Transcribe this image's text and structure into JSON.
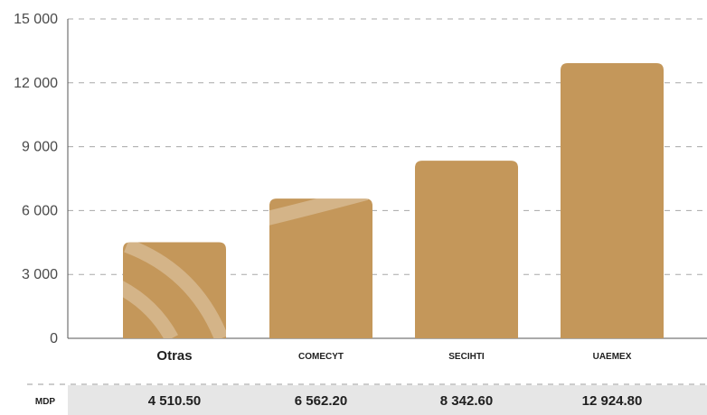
{
  "chart_data": {
    "type": "bar",
    "categories": [
      "Otras",
      "COMECYT",
      "SECIHTI",
      "UAEMEX"
    ],
    "values": [
      4510.5,
      6562.2,
      8342.6,
      12924.8
    ],
    "value_labels": [
      "4 510.50",
      "6 562.20",
      "8 342.60",
      "12 924.80"
    ],
    "ylim": [
      0,
      15000
    ],
    "yticks": [
      0,
      3000,
      6000,
      9000,
      12000,
      15000
    ],
    "ytick_labels": [
      "0",
      "3 000",
      "6 000",
      "9 000",
      "12 000",
      "15 000"
    ],
    "grid": true,
    "grid_style": "dashed",
    "bar_color": "#c4975a",
    "table_row_label": "MDP",
    "table_band_color": "#e6e6e6"
  }
}
